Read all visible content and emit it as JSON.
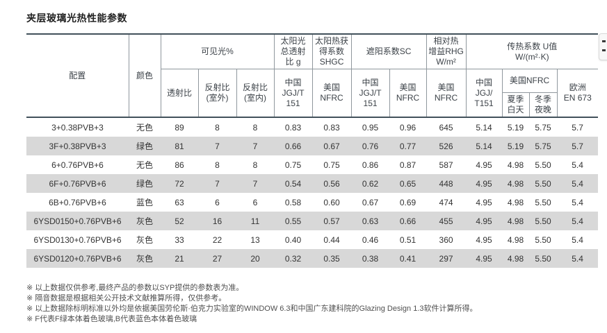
{
  "title": "夹层玻璃光热性能参数",
  "colors": {
    "thick_border": "#41505A",
    "thin_border": "#8F979D",
    "row_alt_background": "#D8D8D8",
    "title_text": "#222222",
    "body_text": "#333333"
  },
  "table": {
    "header": {
      "config": "配置",
      "color": "颜色",
      "visible": {
        "label": "可见光%",
        "cols": [
          "透射比",
          "反射比\n(室外)",
          "反射比\n(室内)"
        ]
      },
      "g": {
        "label": "太阳光\n总透射\n比 g",
        "col": "中国\nJGJ/T\n151"
      },
      "shgc": {
        "label": "太阳热获\n得系数\nSHGC",
        "col": "美国\nNFRC"
      },
      "sc": {
        "label": "遮阳系数SC",
        "cols": [
          "中国\nJGJ/T\n151",
          "美国\nNFRC"
        ]
      },
      "rhg": {
        "label": "相对热\n增益RHG\nW/m²",
        "col": "美国\nNFRC"
      },
      "u": {
        "label": "传热系数 U值\nW/(m²·K)",
        "cn": "中国\nJGJ/\nT151",
        "nfrc": "美国NFRC",
        "nfrc_cols": [
          "夏季\n白天",
          "冬季\n夜晚"
        ],
        "eu": "欧洲\nEN 673"
      }
    },
    "rows": [
      {
        "cells": [
          "3+0.38PVB+3",
          "无色",
          "89",
          "8",
          "8",
          "0.83",
          "0.83",
          "0.95",
          "0.96",
          "645",
          "5.14",
          "5.19",
          "5.75",
          "5.7"
        ]
      },
      {
        "cells": [
          "3F+0.38PVB+3",
          "绿色",
          "81",
          "7",
          "7",
          "0.66",
          "0.67",
          "0.76",
          "0.77",
          "526",
          "5.14",
          "5.19",
          "5.75",
          "5.7"
        ]
      },
      {
        "cells": [
          "6+0.76PVB+6",
          "无色",
          "86",
          "8",
          "8",
          "0.75",
          "0.75",
          "0.86",
          "0.87",
          "587",
          "4.95",
          "4.98",
          "5.50",
          "5.4"
        ]
      },
      {
        "cells": [
          "6F+0.76PVB+6",
          "绿色",
          "72",
          "7",
          "7",
          "0.54",
          "0.56",
          "0.62",
          "0.65",
          "448",
          "4.95",
          "4.98",
          "5.50",
          "5.4"
        ]
      },
      {
        "cells": [
          "6B+0.76PVB+6",
          "蓝色",
          "63",
          "6",
          "6",
          "0.58",
          "0.60",
          "0.67",
          "0.69",
          "474",
          "4.95",
          "4.98",
          "5.50",
          "5.4"
        ]
      },
      {
        "cells": [
          "6YSD0150+0.76PVB+6",
          "灰色",
          "52",
          "16",
          "11",
          "0.55",
          "0.57",
          "0.63",
          "0.66",
          "455",
          "4.95",
          "4.98",
          "5.50",
          "5.4"
        ]
      },
      {
        "cells": [
          "6YSD0130+0.76PVB+6",
          "灰色",
          "33",
          "22",
          "13",
          "0.40",
          "0.44",
          "0.46",
          "0.51",
          "360",
          "4.95",
          "4.98",
          "5.50",
          "5.4"
        ]
      },
      {
        "cells": [
          "6YSD0120+0.76PVB+6",
          "灰色",
          "21",
          "27",
          "20",
          "0.32",
          "0.35",
          "0.38",
          "0.41",
          "297",
          "4.95",
          "4.98",
          "5.50",
          "5.4"
        ]
      }
    ]
  },
  "footnotes": [
    "※ 以上数据仅供参考,最终产品的参数以SYP提供的参数表为准。",
    "※ 隔音数据是根据相关公开技术文献推算所得，仅供参考。",
    "※ 以上数据除标明标准以外均是依据美国劳伦斯·伯克力实验室的WINDOW 6.3和中国广东建科院的Glazing Design 1.3软件计算所得。",
    "※ F代表F绿本体着色玻璃,B代表蓝色本体着色玻璃"
  ]
}
